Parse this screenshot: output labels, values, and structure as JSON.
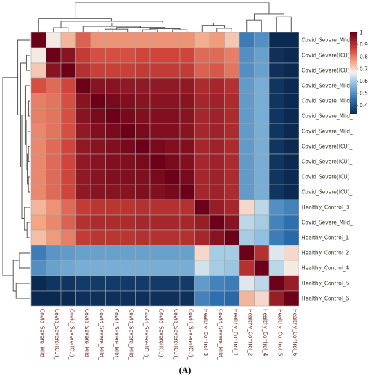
{
  "caption": "(A)",
  "chart_data": {
    "type": "heatmap",
    "title": "",
    "xlabel": "",
    "ylabel": "",
    "row_labels": [
      "Covid_Severe_Mild_",
      "Covid_Severe(ICU)_",
      "Covid_Severe(ICU)_",
      "Covid_Severe_Mild_",
      "Covid_Severe_Mild_",
      "Covid_Severe_Mild_",
      "Covid_Severe_Mild_",
      "Covid_Severe(ICU)_",
      "Covid_Severe(ICU)_",
      "Covid_Severe(ICU)_",
      "Covid_Severe(ICU)_",
      "Healthy_Control_3",
      "Covid_Severe_Mild_",
      "Healthy_Control_1",
      "Healthy_Control_2",
      "Healthy_Control_4",
      "Healthy_Control_5",
      "Healthy_Control_6"
    ],
    "col_labels": [
      "Covid_Severe_Mild_",
      "Covid_Severe(ICU)_",
      "Covid_Severe(ICU)_",
      "Covid_Severe_Mild_",
      "Covid_Severe_Mild_",
      "Covid_Severe_Mild_",
      "Covid_Severe_Mild_",
      "Covid_Severe(ICU)_",
      "Covid_Severe(ICU)_",
      "Covid_Severe(ICU)_",
      "Covid_Severe(ICU)_",
      "Healthy_Control_3",
      "Covid_Severe_Mild_",
      "Healthy_Control_1",
      "Healthy_Control_2",
      "Healthy_Control_4",
      "Healthy_Control_5",
      "Healthy_Control_6"
    ],
    "values": [
      [
        1.0,
        0.68,
        0.74,
        0.83,
        0.78,
        0.78,
        0.78,
        0.78,
        0.78,
        0.78,
        0.78,
        0.75,
        0.77,
        0.72,
        0.47,
        0.5,
        0.32,
        0.3
      ],
      [
        0.68,
        1.0,
        0.96,
        0.88,
        0.85,
        0.85,
        0.85,
        0.86,
        0.86,
        0.86,
        0.86,
        0.82,
        0.82,
        0.8,
        0.5,
        0.53,
        0.34,
        0.32
      ],
      [
        0.72,
        0.96,
        1.0,
        0.9,
        0.87,
        0.87,
        0.87,
        0.88,
        0.88,
        0.88,
        0.88,
        0.83,
        0.84,
        0.81,
        0.5,
        0.53,
        0.34,
        0.32
      ],
      [
        0.85,
        0.82,
        0.86,
        1.0,
        0.96,
        0.96,
        0.95,
        0.95,
        0.95,
        0.95,
        0.95,
        0.91,
        0.92,
        0.9,
        0.52,
        0.55,
        0.35,
        0.33
      ],
      [
        0.8,
        0.81,
        0.85,
        0.96,
        1.0,
        0.98,
        0.97,
        0.96,
        0.96,
        0.96,
        0.96,
        0.92,
        0.93,
        0.91,
        0.52,
        0.55,
        0.35,
        0.33
      ],
      [
        0.8,
        0.81,
        0.85,
        0.96,
        0.98,
        1.0,
        0.98,
        0.97,
        0.97,
        0.97,
        0.96,
        0.92,
        0.93,
        0.91,
        0.52,
        0.55,
        0.35,
        0.33
      ],
      [
        0.79,
        0.81,
        0.85,
        0.95,
        0.97,
        0.98,
        1.0,
        0.98,
        0.97,
        0.97,
        0.96,
        0.92,
        0.93,
        0.91,
        0.52,
        0.55,
        0.35,
        0.33
      ],
      [
        0.79,
        0.82,
        0.86,
        0.95,
        0.96,
        0.97,
        0.98,
        1.0,
        0.98,
        0.97,
        0.97,
        0.92,
        0.93,
        0.91,
        0.52,
        0.55,
        0.35,
        0.33
      ],
      [
        0.79,
        0.82,
        0.86,
        0.95,
        0.96,
        0.97,
        0.97,
        0.98,
        1.0,
        0.98,
        0.97,
        0.92,
        0.93,
        0.91,
        0.52,
        0.55,
        0.35,
        0.33
      ],
      [
        0.79,
        0.82,
        0.86,
        0.95,
        0.96,
        0.97,
        0.97,
        0.97,
        0.98,
        1.0,
        0.98,
        0.92,
        0.93,
        0.91,
        0.52,
        0.55,
        0.35,
        0.33
      ],
      [
        0.79,
        0.82,
        0.86,
        0.95,
        0.96,
        0.96,
        0.96,
        0.97,
        0.97,
        0.98,
        1.0,
        0.92,
        0.93,
        0.91,
        0.52,
        0.55,
        0.35,
        0.33
      ],
      [
        0.74,
        0.78,
        0.82,
        0.88,
        0.89,
        0.89,
        0.89,
        0.9,
        0.9,
        0.9,
        0.9,
        1.0,
        0.94,
        0.92,
        0.7,
        0.62,
        0.5,
        0.48
      ],
      [
        0.76,
        0.79,
        0.83,
        0.9,
        0.91,
        0.91,
        0.91,
        0.92,
        0.92,
        0.92,
        0.92,
        0.94,
        1.0,
        0.96,
        0.62,
        0.6,
        0.48,
        0.45
      ],
      [
        0.73,
        0.77,
        0.8,
        0.88,
        0.89,
        0.89,
        0.89,
        0.9,
        0.9,
        0.9,
        0.9,
        0.92,
        0.96,
        1.0,
        0.6,
        0.58,
        0.47,
        0.44
      ],
      [
        0.47,
        0.51,
        0.52,
        0.53,
        0.53,
        0.53,
        0.53,
        0.53,
        0.53,
        0.53,
        0.53,
        0.7,
        0.6,
        0.6,
        1.0,
        0.9,
        0.65,
        0.7
      ],
      [
        0.5,
        0.53,
        0.54,
        0.55,
        0.55,
        0.55,
        0.55,
        0.55,
        0.55,
        0.55,
        0.55,
        0.64,
        0.6,
        0.59,
        0.9,
        1.0,
        0.62,
        0.68
      ],
      [
        0.33,
        0.35,
        0.35,
        0.36,
        0.36,
        0.36,
        0.36,
        0.36,
        0.36,
        0.36,
        0.36,
        0.52,
        0.48,
        0.47,
        0.65,
        0.62,
        1.0,
        0.94
      ],
      [
        0.3,
        0.32,
        0.33,
        0.34,
        0.34,
        0.34,
        0.34,
        0.34,
        0.34,
        0.34,
        0.34,
        0.48,
        0.45,
        0.44,
        0.74,
        0.7,
        0.94,
        1.0
      ]
    ],
    "color_scale": {
      "stops": [
        {
          "value": 0.33,
          "color": "#0b2a52"
        },
        {
          "value": 0.45,
          "color": "#2d6faf"
        },
        {
          "value": 0.58,
          "color": "#8fc1e0"
        },
        {
          "value": 0.67,
          "color": "#f4f2ef"
        },
        {
          "value": 0.76,
          "color": "#f4a582"
        },
        {
          "value": 0.86,
          "color": "#d0453b"
        },
        {
          "value": 1.0,
          "color": "#6b0018"
        }
      ],
      "ticks": [
        "1",
        "0.9",
        "0.8",
        "0.7",
        "0.6",
        "0.5",
        "0.4"
      ],
      "tick_values": [
        1.0,
        0.9,
        0.8,
        0.7,
        0.6,
        0.5,
        0.4
      ],
      "range": [
        0.33,
        1.0
      ]
    },
    "dendrogram": "hierarchical clustering on rows and columns",
    "grid": true,
    "legend": "right"
  }
}
